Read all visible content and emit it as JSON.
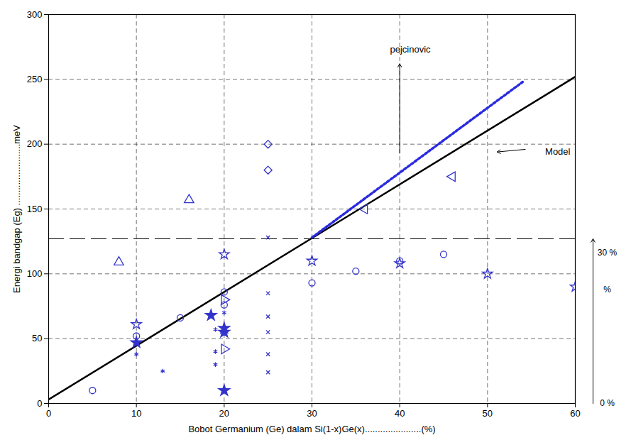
{
  "chart_data": {
    "type": "scatter",
    "x_label": "Bobot Germanium (Ge) dalam Si(1-x)Ge(x)......................(%)",
    "y_label": "Energi bandgap (Eg) ........................meV",
    "xlim": [
      0,
      60
    ],
    "xticks": [
      0,
      10,
      20,
      30,
      40,
      50,
      60
    ],
    "ylim": [
      0,
      300
    ],
    "yticks": [
      0,
      50,
      100,
      150,
      200,
      250,
      300
    ],
    "grid": true,
    "series": [
      {
        "type": "line",
        "color": "#000000",
        "line_style": "solid",
        "x": [
          0,
          60
        ],
        "values": [
          3,
          252
        ]
      },
      {
        "type": "line",
        "color": "#2a2ae0",
        "line_style": "dotted",
        "x": [
          30,
          54
        ],
        "values": [
          128,
          248
        ]
      },
      {
        "type": "scatter",
        "marker": "circle",
        "color": "#3333cc",
        "x": [
          5,
          10,
          15,
          20,
          20,
          30,
          35,
          40,
          45
        ],
        "values": [
          10,
          52,
          66,
          86,
          76,
          93,
          102,
          110,
          115
        ]
      },
      {
        "type": "scatter",
        "marker": "triangle",
        "color": "#3333cc",
        "x": [
          8,
          16
        ],
        "values": [
          109,
          157
        ]
      },
      {
        "type": "scatter",
        "marker": "diamond",
        "color": "#3333cc",
        "x": [
          25,
          25
        ],
        "values": [
          200,
          180
        ]
      },
      {
        "type": "scatter",
        "marker": "triangle-left",
        "color": "#3333cc",
        "x": [
          36,
          46
        ],
        "values": [
          150,
          175
        ]
      },
      {
        "type": "scatter",
        "marker": "triangle-right",
        "color": "#3333cc",
        "x": [
          20,
          20
        ],
        "values": [
          80,
          42
        ]
      },
      {
        "type": "scatter",
        "marker": "hexagram",
        "color": "#3333cc",
        "x": [
          10,
          20,
          30,
          40,
          50,
          60
        ],
        "values": [
          61,
          115,
          110,
          108,
          100,
          90
        ]
      },
      {
        "type": "scatter",
        "marker": "star",
        "color": "#3333cc",
        "x": [
          10,
          18.5,
          20,
          20,
          20
        ],
        "values": [
          47,
          68,
          58,
          55,
          10
        ]
      },
      {
        "type": "scatter",
        "marker": "x",
        "color": "#3333cc",
        "x": [
          25,
          25,
          25,
          25,
          25,
          25
        ],
        "values": [
          128,
          85,
          67,
          55,
          38,
          24
        ]
      },
      {
        "type": "scatter",
        "marker": "asterisk",
        "color": "#3333cc",
        "x": [
          13,
          10,
          19,
          19,
          19,
          20
        ],
        "values": [
          25,
          38,
          57,
          40,
          30,
          70
        ]
      }
    ],
    "hline": 127,
    "annotations": [
      {
        "text": "pejcinovic",
        "x": 41.2,
        "y": 273,
        "arrow_from": [
          40,
          193
        ],
        "arrow_to": [
          40,
          262
        ]
      },
      {
        "text": "Model",
        "x": 58,
        "y": 194,
        "arrow_from": [
          54.3,
          196
        ],
        "arrow_to": [
          51.1,
          194
        ]
      }
    ],
    "side_labels": [
      {
        "text": "30 %",
        "y": 116
      },
      {
        "text": "%",
        "y": 88
      },
      {
        "text": "0 %",
        "y": 0
      }
    ],
    "side_arrow": [
      0,
      127
    ]
  }
}
